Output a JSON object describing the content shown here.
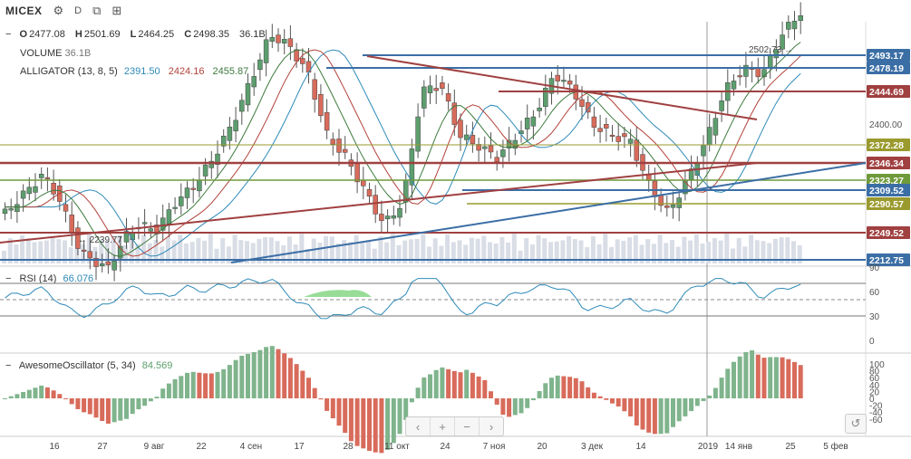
{
  "toolbar": {
    "symbol": "MICEX",
    "interval": "D"
  },
  "ohlc": {
    "o_label": "O",
    "o": "2477.08",
    "h_label": "H",
    "h": "2501.69",
    "l_label": "L",
    "l": "2464.25",
    "c_label": "C",
    "c": "2498.35",
    "vol": "36.1B"
  },
  "volume": {
    "label": "VOLUME",
    "value": "36.1B"
  },
  "alligator": {
    "label": "ALLIGATOR (13, 8, 5)",
    "v1": "2391.50",
    "v2": "2424.16",
    "v3": "2455.87",
    "c1": "#2e8ab8",
    "c2": "#b2423a",
    "c3": "#3d7a3d"
  },
  "rsi": {
    "label": "RSI (14)",
    "value": "66.076",
    "ticks": [
      "90",
      "60",
      "30",
      "0"
    ]
  },
  "ao": {
    "label": "AwesomeOscillator (5, 34)",
    "value": "84.569",
    "ticks": [
      "100",
      "80",
      "60",
      "40",
      "20",
      "0",
      "-20",
      "-40",
      "-60"
    ]
  },
  "nav": {
    "back": "‹",
    "zoom_in": "+",
    "zoom_out": "−",
    "forward": "›",
    "reset": "↺"
  },
  "chart_data": {
    "type": "candlestick",
    "x_ticks": [
      "16",
      "27",
      "9 авг",
      "22",
      "4 сен",
      "17",
      "28",
      "11 окт",
      "24",
      "7 ноя",
      "20",
      "3 дек",
      "14",
      "2019",
      "14 янв",
      "25",
      "5 фев"
    ],
    "y_ticks": [
      "2400.00"
    ],
    "price_labels": [
      {
        "value": "2493.17",
        "color": "#3b6ea5"
      },
      {
        "value": "2478.19",
        "color": "#3b6ea5"
      },
      {
        "value": "2444.69",
        "color": "#a04040"
      },
      {
        "value": "2372.28",
        "color": "#9a9a2e"
      },
      {
        "value": "2346.34",
        "color": "#a04040"
      },
      {
        "value": "2323.27",
        "color": "#6f9a3a"
      },
      {
        "value": "2309.52",
        "color": "#3b6ea5"
      },
      {
        "value": "2290.57",
        "color": "#9a9a2e"
      },
      {
        "value": "2249.52",
        "color": "#a04040"
      },
      {
        "value": "2212.75",
        "color": "#3b6ea5"
      }
    ],
    "annotations": [
      "2502.73 →",
      "← 2239.77"
    ],
    "last": {
      "open": 2477.08,
      "high": 2501.69,
      "low": 2464.25,
      "close": 2498.35
    }
  }
}
